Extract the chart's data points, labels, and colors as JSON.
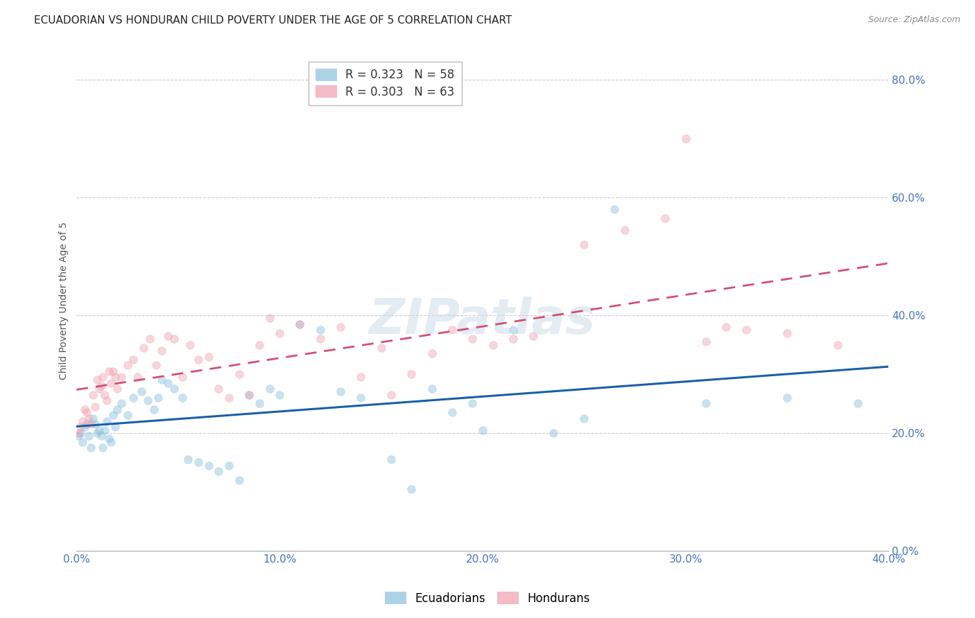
{
  "title": "ECUADORIAN VS HONDURAN CHILD POVERTY UNDER THE AGE OF 5 CORRELATION CHART",
  "source": "Source: ZipAtlas.com",
  "ylabel": "Child Poverty Under the Age of 5",
  "xlim": [
    0.0,
    0.4
  ],
  "ylim": [
    0.0,
    0.85
  ],
  "yticks": [
    0.0,
    0.2,
    0.4,
    0.6,
    0.8
  ],
  "xticks": [
    0.0,
    0.1,
    0.2,
    0.3,
    0.4
  ],
  "background_color": "#ffffff",
  "grid_color": "#cccccc",
  "watermark_text": "ZIPatlas",
  "ecu_line_color": "#1a5fa8",
  "hon_line_color": "#d44f72",
  "title_fontsize": 11,
  "axis_label_fontsize": 10,
  "tick_fontsize": 11,
  "legend_fontsize": 12,
  "source_fontsize": 9,
  "marker_size": 70,
  "marker_alpha": 0.45,
  "ecuadorians": {
    "color": "#89bfdf",
    "R": 0.323,
    "N": 58,
    "label": "Ecuadorians",
    "x": [
      0.001,
      0.002,
      0.003,
      0.004,
      0.005,
      0.006,
      0.007,
      0.008,
      0.009,
      0.01,
      0.011,
      0.012,
      0.013,
      0.014,
      0.015,
      0.016,
      0.017,
      0.018,
      0.019,
      0.02,
      0.022,
      0.025,
      0.028,
      0.032,
      0.035,
      0.038,
      0.04,
      0.042,
      0.045,
      0.048,
      0.052,
      0.055,
      0.06,
      0.065,
      0.07,
      0.075,
      0.08,
      0.085,
      0.09,
      0.095,
      0.1,
      0.11,
      0.12,
      0.13,
      0.14,
      0.155,
      0.165,
      0.175,
      0.185,
      0.195,
      0.2,
      0.215,
      0.235,
      0.25,
      0.265,
      0.31,
      0.35,
      0.385
    ],
    "y": [
      0.195,
      0.2,
      0.185,
      0.21,
      0.215,
      0.195,
      0.175,
      0.225,
      0.215,
      0.2,
      0.205,
      0.195,
      0.175,
      0.205,
      0.22,
      0.19,
      0.185,
      0.23,
      0.21,
      0.24,
      0.25,
      0.23,
      0.26,
      0.27,
      0.255,
      0.24,
      0.26,
      0.29,
      0.285,
      0.275,
      0.26,
      0.155,
      0.15,
      0.145,
      0.135,
      0.145,
      0.12,
      0.265,
      0.25,
      0.275,
      0.265,
      0.385,
      0.375,
      0.27,
      0.26,
      0.155,
      0.105,
      0.275,
      0.235,
      0.25,
      0.205,
      0.375,
      0.2,
      0.225,
      0.58,
      0.25,
      0.26,
      0.25
    ]
  },
  "hondurans": {
    "color": "#f0a0b0",
    "R": 0.303,
    "N": 63,
    "label": "Hondurans",
    "x": [
      0.001,
      0.002,
      0.003,
      0.004,
      0.005,
      0.006,
      0.007,
      0.008,
      0.009,
      0.01,
      0.011,
      0.012,
      0.013,
      0.014,
      0.015,
      0.016,
      0.017,
      0.018,
      0.019,
      0.02,
      0.022,
      0.025,
      0.028,
      0.03,
      0.033,
      0.036,
      0.039,
      0.042,
      0.045,
      0.048,
      0.052,
      0.056,
      0.06,
      0.065,
      0.07,
      0.075,
      0.08,
      0.085,
      0.09,
      0.095,
      0.1,
      0.11,
      0.12,
      0.13,
      0.14,
      0.15,
      0.155,
      0.165,
      0.175,
      0.185,
      0.195,
      0.205,
      0.215,
      0.225,
      0.25,
      0.27,
      0.29,
      0.3,
      0.31,
      0.32,
      0.33,
      0.35,
      0.375
    ],
    "y": [
      0.2,
      0.21,
      0.22,
      0.24,
      0.235,
      0.225,
      0.215,
      0.265,
      0.245,
      0.29,
      0.275,
      0.28,
      0.295,
      0.265,
      0.255,
      0.305,
      0.285,
      0.305,
      0.295,
      0.275,
      0.295,
      0.315,
      0.325,
      0.295,
      0.345,
      0.36,
      0.315,
      0.34,
      0.365,
      0.36,
      0.295,
      0.35,
      0.325,
      0.33,
      0.275,
      0.26,
      0.3,
      0.265,
      0.35,
      0.395,
      0.37,
      0.385,
      0.36,
      0.38,
      0.295,
      0.345,
      0.265,
      0.3,
      0.335,
      0.375,
      0.36,
      0.35,
      0.36,
      0.365,
      0.52,
      0.545,
      0.565,
      0.7,
      0.355,
      0.38,
      0.375,
      0.37,
      0.35
    ]
  }
}
